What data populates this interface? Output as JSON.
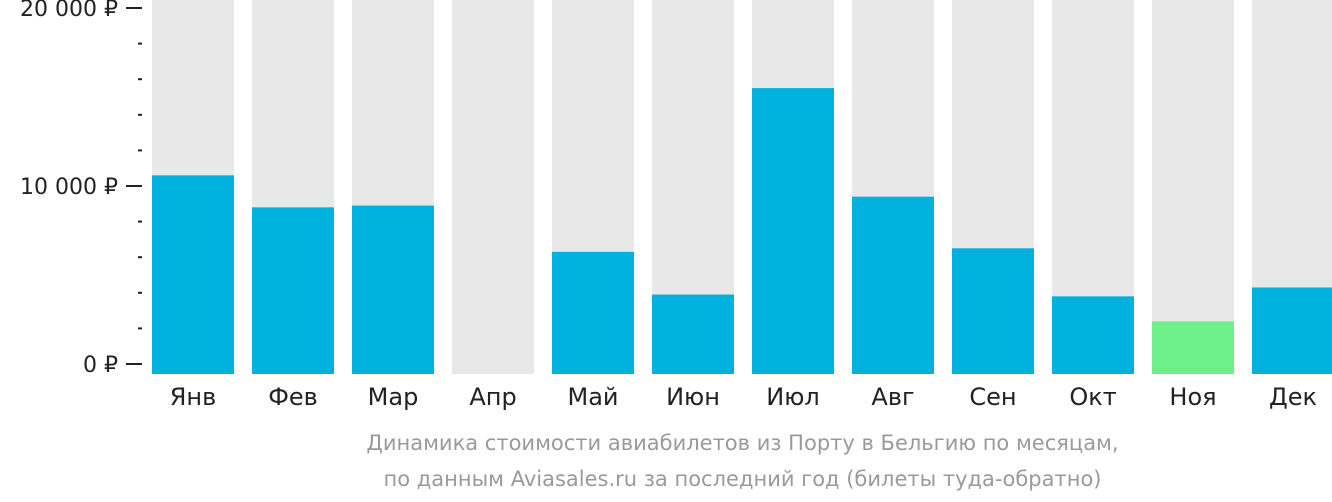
{
  "chart_data": {
    "type": "bar",
    "categories": [
      "Янв",
      "Фев",
      "Мар",
      "Апр",
      "Май",
      "Июн",
      "Июл",
      "Авг",
      "Сен",
      "Окт",
      "Ноя",
      "Дек"
    ],
    "values": [
      10600,
      8800,
      8900,
      0,
      6300,
      3900,
      15500,
      9400,
      6500,
      3800,
      2400,
      4300
    ],
    "ylim": [
      0,
      20000
    ],
    "yticks": [
      {
        "value": 0,
        "label": "0 ₽"
      },
      {
        "value": 10000,
        "label": "10 000 ₽"
      },
      {
        "value": 20000,
        "label": "20 000 ₽"
      }
    ],
    "minor_tick_step": 2000,
    "highlight_index": 10,
    "grid": false,
    "colors": {
      "bar": "#00b0dd",
      "highlight": "#6df08a",
      "background_bar": "#e8e8e8",
      "axis": "#222222"
    }
  },
  "caption": {
    "line1": "Динамика стоимости авиабилетов из Порту в Бельгию по месяцам,",
    "line2": "по данным Aviasales.ru за последний год (билеты туда-обратно)"
  }
}
